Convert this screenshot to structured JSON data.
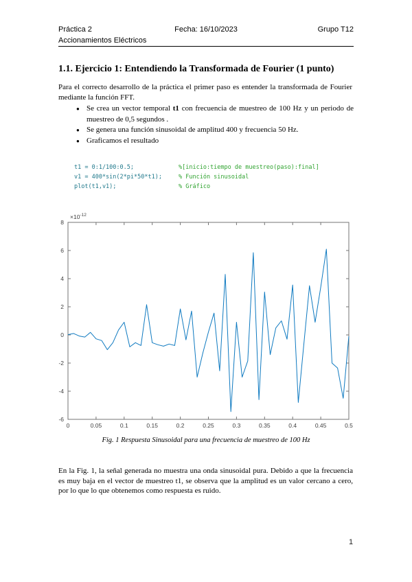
{
  "header": {
    "course": "Práctica 2",
    "subtitle": "Accionamientos Eléctricos",
    "date": "Fecha: 16/10/2023",
    "group": "Grupo T12"
  },
  "section": {
    "title": "1.1. Ejercicio 1: Entendiendo la Transformada de Fourier (1 punto)"
  },
  "intro": "Para el correcto desarrollo de la práctica el primer paso es entender la transformada de Fourier mediante la función FFT.",
  "bullets": [
    {
      "pre": "Se crea un vector temporal ",
      "bold": "t1",
      "post": " con frecuencia de muestreo de 100 Hz y un periodo de muestreo de 0,5 segundos ."
    },
    {
      "pre": "Se genera una función sinusoidal de amplitud 400 y frecuencia 50 Hz.",
      "bold": "",
      "post": ""
    },
    {
      "pre": "Graficamos el resultado",
      "bold": "",
      "post": ""
    }
  ],
  "code": {
    "text_color": "#20798c",
    "comment_color": "#2fa32f",
    "lines": [
      {
        "code": "t1 = 0:1/100:0.5;",
        "comment": "%[inicio:tiempo de muestreo(paso):final]"
      },
      {
        "code": "v1 = 400*sin(2*pi*50*t1);",
        "comment": "% Función sinusoidal"
      },
      {
        "code": "plot(t1,v1);",
        "comment": "% Gráfico"
      }
    ]
  },
  "figure": {
    "caption": "Fig. 1 Respuesta Sinusoidal para una frecuencia de muestreo de 100 Hz"
  },
  "discussion": "En la Fig. 1, la señal generada no muestra una onda sinusoidal pura. Debido a que la frecuencia es muy baja en el vector de muestreo t1, se observa que la amplitud es un valor cercano a cero, por lo que lo que obtenemos como respuesta es ruido.",
  "page": {
    "number": "1"
  },
  "chart_data": {
    "type": "line",
    "title": "",
    "xlabel": "",
    "ylabel": "",
    "multiplier_prefix": "×10",
    "multiplier_exponent": "-12",
    "unit_multiplier": "1e-12",
    "xlim": [
      0,
      0.5
    ],
    "ylim": [
      -6,
      8
    ],
    "grid": false,
    "legend": null,
    "line_color": "#0072BD",
    "axis_color": "#737373",
    "tick_label_color": "#404040",
    "xtick_labels": [
      "0",
      "0.05",
      "0.1",
      "0.15",
      "0.2",
      "0.25",
      "0.3",
      "0.35",
      "0.4",
      "0.45",
      "0.5"
    ],
    "xticks": [
      0,
      0.05,
      0.1,
      0.15,
      0.2,
      0.25,
      0.3,
      0.35,
      0.4,
      0.45,
      0.5
    ],
    "yticks": [
      8,
      6,
      4,
      2,
      0,
      -2,
      -4,
      -6
    ],
    "x": [
      0,
      0.01,
      0.02,
      0.03,
      0.04,
      0.05,
      0.06,
      0.07,
      0.08,
      0.09,
      0.1,
      0.11,
      0.12,
      0.13,
      0.14,
      0.15,
      0.16,
      0.17,
      0.18,
      0.19,
      0.2,
      0.21,
      0.22,
      0.23,
      0.24,
      0.25,
      0.26,
      0.27,
      0.28,
      0.29,
      0.3,
      0.31,
      0.32,
      0.33,
      0.34,
      0.35,
      0.36,
      0.37,
      0.38,
      0.39,
      0.4,
      0.41,
      0.42,
      0.43,
      0.44,
      0.45,
      0.46,
      0.47,
      0.48,
      0.49,
      0.5
    ],
    "values": [
      0.02,
      0.1,
      -0.08,
      -0.15,
      0.18,
      -0.28,
      -0.4,
      -1.05,
      -0.55,
      0.35,
      0.9,
      -0.85,
      -0.55,
      -0.75,
      2.15,
      -0.55,
      -0.7,
      -0.8,
      -0.65,
      -0.75,
      1.85,
      -0.35,
      1.7,
      -3.0,
      -1.3,
      0.2,
      1.55,
      -2.55,
      4.3,
      -5.45,
      0.9,
      -3.0,
      -1.85,
      5.85,
      -4.6,
      3.05,
      -1.4,
      0.5,
      1.0,
      -0.3,
      3.55,
      -4.8,
      -0.6,
      3.5,
      0.9,
      3.4,
      6.1,
      -2.0,
      -2.35,
      -4.5,
      -0.1
    ]
  }
}
